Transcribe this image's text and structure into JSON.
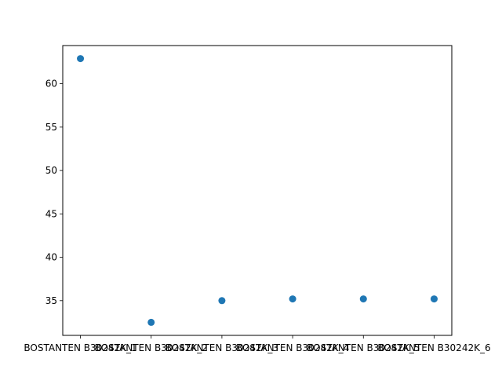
{
  "chart_data": {
    "type": "scatter",
    "title": "",
    "xlabel": "",
    "ylabel": "",
    "categories": [
      "BOSTANTEN B30242K_1",
      "BOSTANTEN B30242K_2",
      "BOSTANTEN B30242K_3",
      "BOSTANTEN B30242K_4",
      "BOSTANTEN B30242K_5",
      "BOSTANTEN B30242K_6"
    ],
    "series": [
      {
        "values": [
          62.9,
          32.5,
          35.0,
          35.2,
          35.2,
          35.2
        ],
        "color": "#1f77b4"
      }
    ],
    "ylim": [
      31.0,
      64.4
    ],
    "yticks": [
      35,
      40,
      45,
      50,
      55,
      60
    ],
    "grid": false,
    "legend": "none"
  }
}
